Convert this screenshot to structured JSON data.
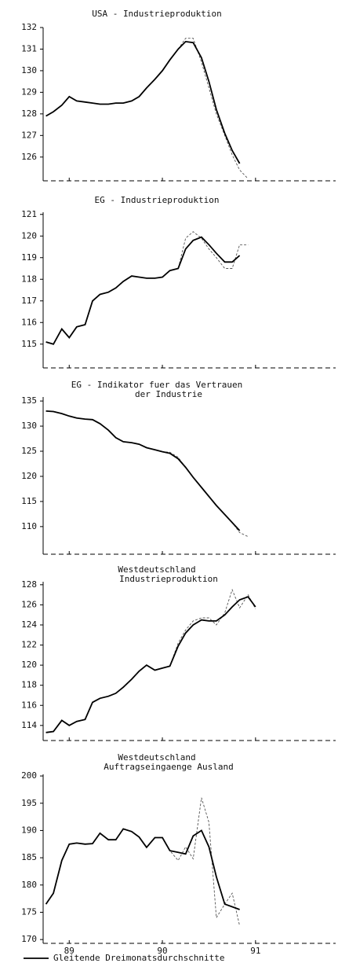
{
  "chart_data": [
    {
      "type": "line",
      "title": [
        "USA - Industrieproduktion"
      ],
      "x": [
        88.75,
        88.83,
        88.92,
        89,
        89.08,
        89.17,
        89.25,
        89.33,
        89.42,
        89.5,
        89.58,
        89.67,
        89.75,
        89.83,
        89.92,
        90,
        90.08,
        90.17,
        90.25,
        90.33,
        90.42,
        90.5,
        90.58,
        90.67,
        90.75,
        90.83,
        90.92,
        91
      ],
      "xlim": [
        88.72,
        91.86
      ],
      "ylim": [
        124.9,
        132
      ],
      "yticks": [
        126,
        127,
        128,
        129,
        130,
        131,
        132
      ],
      "series": [
        {
          "color": "#000000",
          "style": "solid",
          "values": [
            127.9,
            128.1,
            128.4,
            128.8,
            128.6,
            128.55,
            128.5,
            128.45,
            128.45,
            128.5,
            128.5,
            128.6,
            128.8,
            129.2,
            129.6,
            130.0,
            130.5,
            131.0,
            131.35,
            131.3,
            130.6,
            129.5,
            128.2,
            127.1,
            126.3,
            125.7,
            null,
            null
          ]
        },
        {
          "color": "#555555",
          "style": "dashed",
          "values": [
            127.9,
            128.1,
            128.4,
            128.8,
            128.6,
            128.55,
            128.5,
            128.45,
            128.45,
            128.5,
            128.5,
            128.6,
            128.8,
            129.2,
            129.6,
            130.0,
            130.5,
            131.0,
            131.5,
            131.5,
            130.4,
            129.2,
            128.0,
            127.0,
            126.1,
            125.4,
            125.0,
            null
          ]
        }
      ]
    },
    {
      "type": "line",
      "title": [
        "EG - Industrieproduktion"
      ],
      "x": [
        88.75,
        88.83,
        88.92,
        89,
        89.08,
        89.17,
        89.25,
        89.33,
        89.42,
        89.5,
        89.58,
        89.67,
        89.75,
        89.83,
        89.92,
        90,
        90.08,
        90.17,
        90.25,
        90.33,
        90.42,
        90.5,
        90.58,
        90.67,
        90.75,
        90.83,
        90.92,
        91
      ],
      "xlim": [
        88.72,
        91.86
      ],
      "ylim": [
        113.9,
        121.1
      ],
      "yticks": [
        115,
        116,
        117,
        118,
        119,
        120,
        121
      ],
      "series": [
        {
          "color": "#000000",
          "style": "solid",
          "values": [
            115.1,
            115.0,
            115.7,
            115.3,
            115.8,
            115.9,
            117.0,
            117.3,
            117.4,
            117.6,
            117.9,
            118.15,
            118.1,
            118.05,
            118.05,
            118.1,
            118.4,
            118.5,
            119.4,
            119.8,
            119.95,
            119.6,
            119.2,
            118.8,
            118.8,
            119.1,
            null,
            null
          ]
        },
        {
          "color": "#555555",
          "style": "dashed",
          "values": [
            115.1,
            115.0,
            115.7,
            115.3,
            115.8,
            115.9,
            117.0,
            117.3,
            117.4,
            117.6,
            117.9,
            118.15,
            118.1,
            118.05,
            118.05,
            118.1,
            118.4,
            118.5,
            119.9,
            120.2,
            119.9,
            119.4,
            119.0,
            118.5,
            118.5,
            119.6,
            119.6,
            null
          ]
        }
      ]
    },
    {
      "type": "line",
      "title": [
        "EG - Indikator fuer das Vertrauen",
        "der Industrie"
      ],
      "x": [
        88.75,
        88.83,
        88.92,
        89,
        89.08,
        89.17,
        89.25,
        89.33,
        89.42,
        89.5,
        89.58,
        89.67,
        89.75,
        89.83,
        89.92,
        90,
        90.08,
        90.17,
        90.25,
        90.33,
        90.42,
        90.5,
        90.58,
        90.67,
        90.75,
        90.83,
        90.92,
        91
      ],
      "xlim": [
        88.72,
        91.86
      ],
      "ylim": [
        104.5,
        135.8
      ],
      "yticks": [
        110,
        115,
        120,
        125,
        130,
        135
      ],
      "series": [
        {
          "color": "#000000",
          "style": "solid",
          "values": [
            133.0,
            132.9,
            132.5,
            132.0,
            131.6,
            131.4,
            131.3,
            130.5,
            129.2,
            127.7,
            126.9,
            126.7,
            126.4,
            125.7,
            125.3,
            124.9,
            124.6,
            123.5,
            121.8,
            119.8,
            117.8,
            116.0,
            114.2,
            112.4,
            110.8,
            109.2,
            null,
            null
          ]
        },
        {
          "color": "#555555",
          "style": "dashed",
          "values": [
            133.0,
            132.9,
            132.5,
            132.0,
            131.6,
            131.4,
            131.3,
            130.5,
            129.2,
            127.7,
            126.9,
            126.7,
            126.4,
            125.7,
            125.3,
            124.9,
            124.8,
            123.8,
            121.8,
            119.8,
            117.8,
            116.0,
            114.2,
            112.4,
            110.8,
            108.8,
            108.0,
            null
          ]
        }
      ]
    },
    {
      "type": "line",
      "title": [
        "Westdeutschland",
        "Industrieproduktion"
      ],
      "x": [
        88.75,
        88.83,
        88.92,
        89,
        89.08,
        89.17,
        89.25,
        89.33,
        89.42,
        89.5,
        89.58,
        89.67,
        89.75,
        89.83,
        89.92,
        90,
        90.08,
        90.17,
        90.25,
        90.33,
        90.42,
        90.5,
        90.58,
        90.67,
        90.75,
        90.83,
        90.92,
        91
      ],
      "xlim": [
        88.72,
        91.86
      ],
      "ylim": [
        112.5,
        128.3
      ],
      "yticks": [
        114,
        116,
        118,
        120,
        122,
        124,
        126,
        128
      ],
      "series": [
        {
          "color": "#000000",
          "style": "solid",
          "values": [
            113.3,
            113.4,
            114.5,
            114.0,
            114.4,
            114.6,
            116.3,
            116.7,
            116.9,
            117.2,
            117.8,
            118.6,
            119.4,
            120.0,
            119.5,
            119.7,
            119.9,
            121.9,
            123.2,
            124.0,
            124.5,
            124.4,
            124.4,
            125.0,
            125.8,
            126.5,
            126.8,
            125.8
          ]
        },
        {
          "color": "#555555",
          "style": "dashed",
          "values": [
            113.3,
            113.4,
            114.5,
            114.0,
            114.4,
            114.6,
            116.3,
            116.7,
            116.9,
            117.2,
            117.8,
            118.6,
            119.4,
            120.0,
            119.5,
            119.7,
            119.9,
            122.2,
            123.5,
            124.4,
            124.7,
            124.7,
            124.0,
            125.2,
            127.5,
            125.7,
            127.0,
            125.6
          ]
        }
      ]
    },
    {
      "type": "line",
      "title": [
        "Westdeutschland",
        "Auftragseingaenge  Ausland"
      ],
      "x": [
        88.75,
        88.83,
        88.92,
        89,
        89.08,
        89.17,
        89.25,
        89.33,
        89.42,
        89.5,
        89.58,
        89.67,
        89.75,
        89.83,
        89.92,
        90,
        90.08,
        90.17,
        90.25,
        90.33,
        90.42,
        90.5,
        90.58,
        90.67,
        90.75,
        90.83,
        90.92,
        91
      ],
      "xlim": [
        88.72,
        91.86
      ],
      "xticks": [
        89,
        90,
        91
      ],
      "ylim": [
        169.3,
        200.3
      ],
      "yticks": [
        170,
        175,
        180,
        185,
        190,
        195,
        200
      ],
      "series": [
        {
          "name": "Gleitende Dreimonatsdurchschnitte",
          "color": "#000000",
          "style": "solid",
          "values": [
            176.5,
            178.5,
            184.5,
            187.5,
            187.7,
            187.5,
            187.6,
            189.5,
            188.3,
            188.3,
            190.3,
            189.8,
            188.8,
            186.9,
            188.7,
            188.7,
            186.3,
            186.0,
            185.7,
            189.0,
            190.0,
            187.0,
            181.5,
            176.5,
            176.0,
            175.5,
            null,
            null
          ]
        },
        {
          "color": "#555555",
          "style": "dashed",
          "values": [
            176.5,
            178.5,
            184.5,
            187.5,
            187.7,
            187.5,
            187.6,
            189.5,
            188.3,
            188.3,
            190.3,
            189.8,
            188.8,
            186.9,
            188.7,
            188.7,
            186.3,
            184.5,
            187.0,
            184.8,
            196.0,
            191.5,
            174.0,
            176.5,
            178.5,
            172.5,
            null,
            null
          ]
        }
      ]
    }
  ]
}
